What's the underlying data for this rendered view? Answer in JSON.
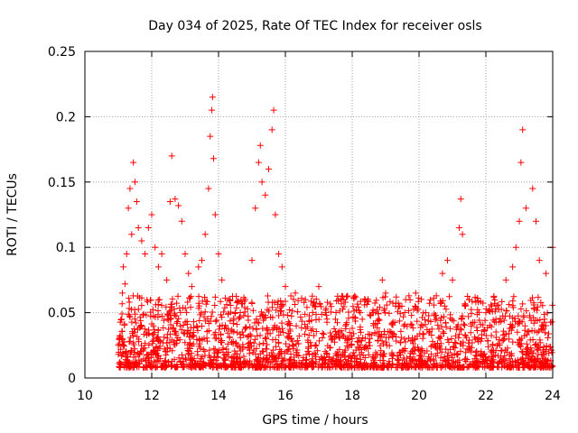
{
  "chart_data": {
    "type": "scatter",
    "title": "Day 034 of 2025, Rate Of TEC Index for receiver osls",
    "xlabel": "GPS time / hours",
    "ylabel": "ROTI / TECUs",
    "xlim": [
      10,
      24
    ],
    "ylim": [
      0,
      0.25
    ],
    "xticks": [
      10,
      12,
      14,
      16,
      18,
      20,
      22,
      24
    ],
    "yticks": [
      0,
      0.05,
      0.1,
      0.15,
      0.2,
      0.25
    ],
    "xtick_labels": [
      "10",
      "12",
      "14",
      "16",
      "18",
      "20",
      "22",
      "24"
    ],
    "ytick_labels": [
      "0",
      "0.05",
      "0.1",
      "0.15",
      "0.2",
      "0.25"
    ],
    "grid": true,
    "marker": "+",
    "color": "#ff0000",
    "series": [
      {
        "name": "ROTI",
        "points": [
          [
            11.0,
            0.025
          ],
          [
            11.05,
            0.032
          ],
          [
            11.1,
            0.045
          ],
          [
            11.12,
            0.065
          ],
          [
            11.15,
            0.085
          ],
          [
            11.2,
            0.072
          ],
          [
            11.25,
            0.095
          ],
          [
            11.3,
            0.13
          ],
          [
            11.35,
            0.145
          ],
          [
            11.4,
            0.11
          ],
          [
            11.45,
            0.165
          ],
          [
            11.5,
            0.15
          ],
          [
            11.55,
            0.135
          ],
          [
            11.6,
            0.115
          ],
          [
            11.7,
            0.105
          ],
          [
            11.8,
            0.095
          ],
          [
            11.9,
            0.115
          ],
          [
            12.0,
            0.125
          ],
          [
            12.1,
            0.1
          ],
          [
            12.2,
            0.085
          ],
          [
            12.3,
            0.095
          ],
          [
            12.45,
            0.075
          ],
          [
            12.55,
            0.135
          ],
          [
            12.6,
            0.17
          ],
          [
            12.7,
            0.137
          ],
          [
            12.8,
            0.132
          ],
          [
            12.9,
            0.12
          ],
          [
            13.0,
            0.095
          ],
          [
            13.1,
            0.08
          ],
          [
            13.2,
            0.07
          ],
          [
            13.4,
            0.085
          ],
          [
            13.5,
            0.09
          ],
          [
            13.6,
            0.11
          ],
          [
            13.7,
            0.145
          ],
          [
            13.75,
            0.185
          ],
          [
            13.8,
            0.205
          ],
          [
            13.82,
            0.215
          ],
          [
            13.85,
            0.168
          ],
          [
            13.9,
            0.125
          ],
          [
            14.0,
            0.095
          ],
          [
            14.1,
            0.075
          ],
          [
            14.3,
            0.06
          ],
          [
            14.5,
            0.05
          ],
          [
            14.8,
            0.06
          ],
          [
            15.0,
            0.09
          ],
          [
            15.1,
            0.13
          ],
          [
            15.2,
            0.165
          ],
          [
            15.25,
            0.178
          ],
          [
            15.3,
            0.15
          ],
          [
            15.4,
            0.14
          ],
          [
            15.5,
            0.16
          ],
          [
            15.6,
            0.19
          ],
          [
            15.65,
            0.205
          ],
          [
            15.7,
            0.125
          ],
          [
            15.8,
            0.095
          ],
          [
            15.9,
            0.085
          ],
          [
            16.0,
            0.07
          ],
          [
            16.3,
            0.065
          ],
          [
            16.6,
            0.06
          ],
          [
            16.9,
            0.055
          ],
          [
            17.0,
            0.07
          ],
          [
            17.2,
            0.05
          ],
          [
            17.5,
            0.045
          ],
          [
            17.8,
            0.04
          ],
          [
            18.0,
            0.038
          ],
          [
            18.3,
            0.045
          ],
          [
            18.6,
            0.05
          ],
          [
            18.9,
            0.075
          ],
          [
            19.0,
            0.065
          ],
          [
            19.3,
            0.055
          ],
          [
            19.6,
            0.06
          ],
          [
            19.9,
            0.065
          ],
          [
            20.2,
            0.05
          ],
          [
            20.5,
            0.048
          ],
          [
            20.7,
            0.08
          ],
          [
            20.85,
            0.09
          ],
          [
            21.0,
            0.075
          ],
          [
            21.2,
            0.115
          ],
          [
            21.25,
            0.137
          ],
          [
            21.3,
            0.11
          ],
          [
            21.5,
            0.06
          ],
          [
            21.7,
            0.058
          ],
          [
            22.0,
            0.05
          ],
          [
            22.3,
            0.045
          ],
          [
            22.6,
            0.075
          ],
          [
            22.8,
            0.085
          ],
          [
            22.9,
            0.1
          ],
          [
            23.0,
            0.12
          ],
          [
            23.05,
            0.165
          ],
          [
            23.1,
            0.19
          ],
          [
            23.2,
            0.13
          ],
          [
            23.4,
            0.145
          ],
          [
            23.5,
            0.12
          ],
          [
            23.6,
            0.09
          ],
          [
            23.8,
            0.08
          ],
          [
            24.0,
            0.1
          ]
        ]
      }
    ]
  }
}
